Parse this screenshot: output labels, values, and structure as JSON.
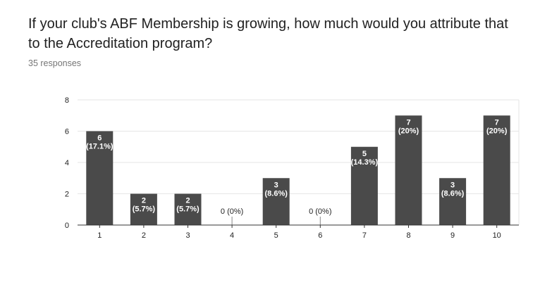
{
  "question": {
    "title": "If your club's ABF Membership is growing, how much would you attribute that to the Accreditation program?",
    "response_count": "35 responses"
  },
  "colors": {
    "bar": "#4a4a4a",
    "grid": "#e6e6e6",
    "axis": "#333333",
    "label_inside": "#ffffff",
    "label_outside": "#222222"
  },
  "chart_data": {
    "type": "bar",
    "categories": [
      "1",
      "2",
      "3",
      "4",
      "5",
      "6",
      "7",
      "8",
      "9",
      "10"
    ],
    "values": [
      6,
      2,
      2,
      0,
      3,
      0,
      5,
      7,
      3,
      7
    ],
    "data_labels": [
      "6 (17.1%)",
      "2 (5.7%)",
      "2 (5.7%)",
      "0 (0%)",
      "3 (8.6%)",
      "0 (0%)",
      "5 (14.3%)",
      "7 (20%)",
      "3 (8.6%)",
      "7 (20%)"
    ],
    "yticks": [
      0,
      2,
      4,
      6,
      8
    ],
    "ylim": [
      0,
      8
    ],
    "grid": true,
    "legend": false
  }
}
